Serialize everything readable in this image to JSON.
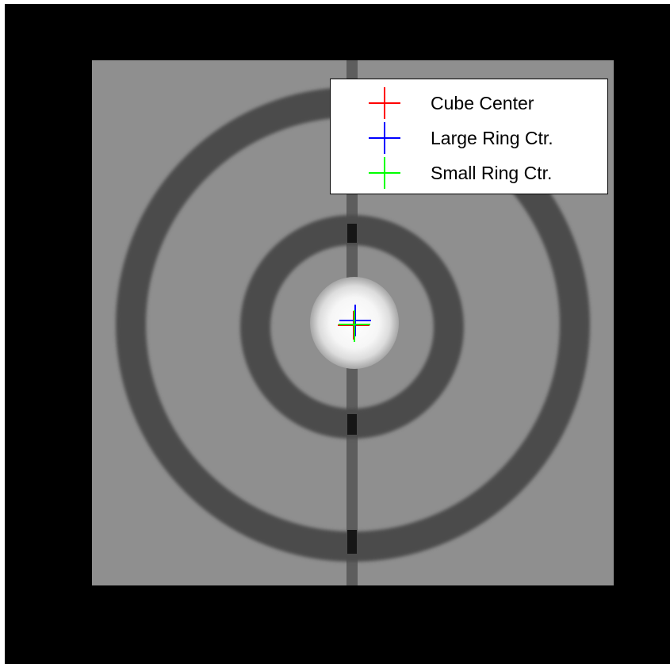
{
  "legend": {
    "items": [
      {
        "label": "Cube Center",
        "color": "#ff0000",
        "icon": "cross-marker-icon"
      },
      {
        "label": "Large Ring Ctr.",
        "color": "#0000ff",
        "icon": "cross-marker-icon"
      },
      {
        "label": "Small Ring Ctr.",
        "color": "#00ff00",
        "icon": "cross-marker-icon"
      }
    ]
  },
  "colors": {
    "figure_background": "#000000",
    "phantom_background": "#8f8f8f",
    "ring": "#4b4b4b",
    "center_spot": "#ffffff"
  }
}
